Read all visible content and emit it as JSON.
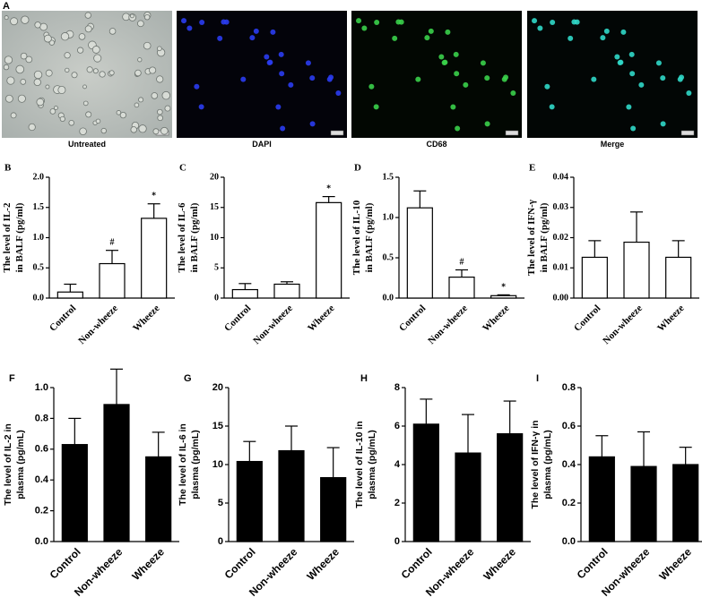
{
  "panel_a": {
    "label": "A",
    "captions": [
      "Untreated",
      "DAPI",
      "CD68",
      "Merge"
    ]
  },
  "chart_data": [
    {
      "type": "bar",
      "panel": "B",
      "ylabel": [
        "The level of IL-2",
        "in BALF (pg/ml)"
      ],
      "categories": [
        "Control",
        "Non-wheeze",
        "Wheeze"
      ],
      "values": [
        0.1,
        0.57,
        1.32
      ],
      "errors": [
        0.13,
        0.22,
        0.24
      ],
      "annotations": [
        null,
        "#",
        "*"
      ],
      "color": "#ffffff",
      "ylim": [
        0,
        2
      ],
      "yticks": [
        {
          "value": 0,
          "label": "0.0"
        },
        0.5,
        {
          "value": 1,
          "label": "1.0"
        },
        1.5,
        {
          "value": 2,
          "label": "2.0"
        }
      ]
    },
    {
      "type": "bar",
      "panel": "C",
      "ylabel": [
        "The level of IL-6",
        "in BALF (pg/ml)"
      ],
      "categories": [
        "Control",
        "Non-wheeze",
        "Wheeze"
      ],
      "values": [
        1.4,
        2.3,
        15.8
      ],
      "errors": [
        1.0,
        0.4,
        1.0
      ],
      "annotations": [
        null,
        null,
        "*"
      ],
      "color": "#ffffff",
      "ylim": [
        0,
        20
      ],
      "yticks": [
        0,
        5,
        10,
        15,
        20
      ]
    },
    {
      "type": "bar",
      "panel": "D",
      "ylabel": [
        "The level of IL-10",
        "in BALF (pg/ml)"
      ],
      "categories": [
        "Control",
        "Non-wheeze",
        "Wheeze"
      ],
      "values": [
        1.12,
        0.26,
        0.03
      ],
      "errors": [
        0.21,
        0.09,
        0.01
      ],
      "annotations": [
        null,
        "#",
        "*"
      ],
      "color": "#ffffff",
      "ylim": [
        0,
        1.5
      ],
      "yticks": [
        {
          "value": 0,
          "label": "0.0"
        },
        0.5,
        {
          "value": 1,
          "label": "1.0"
        },
        1.5
      ]
    },
    {
      "type": "bar",
      "panel": "E",
      "ylabel": [
        "The level of IFN-γ",
        "in BALF (pg/ml)"
      ],
      "categories": [
        "Control",
        "Non-wheeze",
        "Wheeze"
      ],
      "values": [
        0.0135,
        0.0185,
        0.0135
      ],
      "errors": [
        0.0055,
        0.01,
        0.0055
      ],
      "annotations": [
        null,
        null,
        null
      ],
      "color": "#ffffff",
      "ylim": [
        0,
        0.04
      ],
      "yticks": [
        {
          "value": 0,
          "label": "0.00"
        },
        {
          "value": 0.01,
          "label": "0.01"
        },
        {
          "value": 0.02,
          "label": "0.02"
        },
        {
          "value": 0.03,
          "label": "0.03"
        },
        {
          "value": 0.04,
          "label": "0.04"
        }
      ]
    },
    {
      "type": "bar",
      "panel": "F",
      "ylabel": [
        "The level of IL-2 in",
        "plasma (pg/mL)"
      ],
      "categories": [
        "Control",
        "Non-wheeze",
        "Wheeze"
      ],
      "values": [
        0.63,
        0.89,
        0.55
      ],
      "errors": [
        0.17,
        0.23,
        0.16
      ],
      "annotations": [
        null,
        null,
        null
      ],
      "color": "#000000",
      "ylim": [
        0,
        1
      ],
      "yticks": [
        {
          "value": 0,
          "label": "0.0"
        },
        0.2,
        0.4,
        0.6,
        0.8,
        {
          "value": 1,
          "label": "1.0"
        }
      ]
    },
    {
      "type": "bar",
      "panel": "G",
      "ylabel": [
        "The level of IL-6 in",
        "plasma (pg/mL)"
      ],
      "categories": [
        "Control",
        "Non-wheeze",
        "Wheeze"
      ],
      "values": [
        10.4,
        11.8,
        8.3
      ],
      "errors": [
        2.6,
        3.2,
        3.9
      ],
      "annotations": [
        null,
        null,
        null
      ],
      "color": "#000000",
      "ylim": [
        0,
        20
      ],
      "yticks": [
        0,
        5,
        10,
        15,
        20
      ]
    },
    {
      "type": "bar",
      "panel": "H",
      "ylabel": [
        "The level of IL-10 in",
        "plasma (pg/mL)"
      ],
      "categories": [
        "Control",
        "Non-wheeze",
        "Wheeze"
      ],
      "values": [
        6.1,
        4.6,
        5.6
      ],
      "errors": [
        1.3,
        2.0,
        1.7
      ],
      "annotations": [
        null,
        null,
        null
      ],
      "color": "#000000",
      "ylim": [
        0,
        8
      ],
      "yticks": [
        0,
        2,
        4,
        6,
        8
      ]
    },
    {
      "type": "bar",
      "panel": "I",
      "ylabel": [
        "The level of IFN-γ in",
        "plasma (pg/mL)"
      ],
      "categories": [
        "Control",
        "Non-wheeze",
        "Wheeze"
      ],
      "values": [
        0.44,
        0.39,
        0.4
      ],
      "errors": [
        0.11,
        0.18,
        0.09
      ],
      "annotations": [
        null,
        null,
        null
      ],
      "color": "#000000",
      "ylim": [
        0,
        0.8
      ],
      "yticks": [
        {
          "value": 0,
          "label": "0.0"
        },
        0.2,
        0.4,
        0.6,
        0.8
      ]
    }
  ]
}
